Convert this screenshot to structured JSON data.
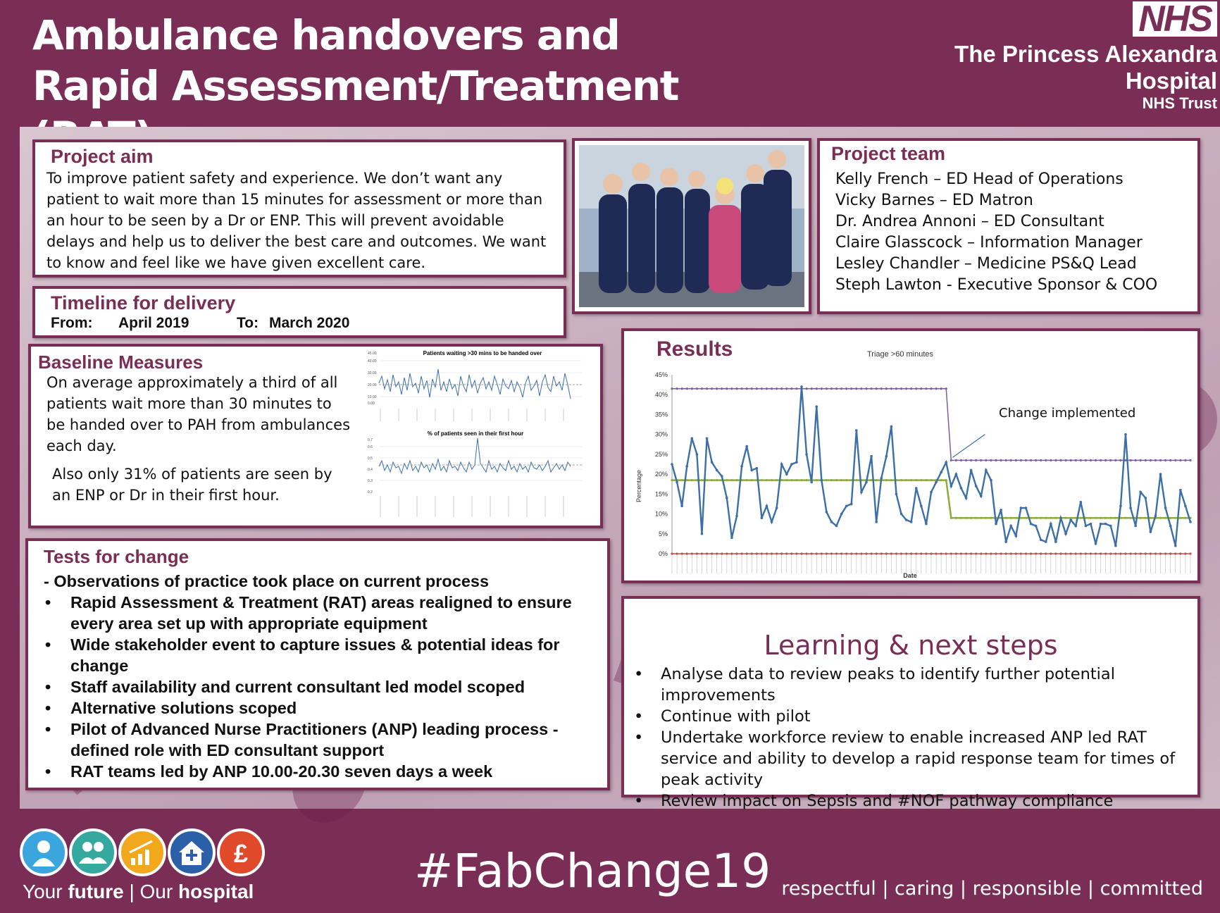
{
  "header": {
    "title": "Ambulance handovers and Rapid Assessment/Treatment (RAT)",
    "nhs_logo": "NHS",
    "org_line1": "The Princess Alexandra",
    "org_line2": "Hospital",
    "org_line3": "NHS Trust"
  },
  "aim": {
    "title": "Project aim",
    "text": "To improve patient safety and experience.  We don’t want any patient to wait more than 15 minutes for assessment or more than an hour to be seen by a Dr or ENP.  This will prevent avoidable delays and help us to deliver the best care and outcomes.  We want to know and feel like we have given excellent care."
  },
  "timeline": {
    "title": "Timeline for delivery",
    "from_label": "From:",
    "from_value": "April 2019",
    "to_label": "To:",
    "to_value": "March 2020"
  },
  "team": {
    "title": "Project team",
    "members": [
      "Kelly French – ED Head of Operations",
      "Vicky Barnes – ED Matron",
      "Dr. Andrea Annoni – ED Consultant",
      "Claire Glasscock – Information Manager",
      "Lesley Chandler – Medicine PS&Q Lead",
      "Steph Lawton - Executive Sponsor & COO"
    ]
  },
  "baseline": {
    "title": "Baseline Measures",
    "text1": "On average approximately a third of all patients wait more than 30 minutes to be handed over to PAH from ambulances each day.",
    "text2": "Also  only 31% of patients are seen by an ENP or Dr in their first hour.",
    "mini_chart1_title": "Patients waiting >30 mins to be handed over",
    "mini_chart2_title": "% of patients seen in their first hour"
  },
  "tests": {
    "title": "Tests for change",
    "intro": "- Observations of  practice took place on current process",
    "items": [
      "Rapid Assessment & Treatment (RAT) areas realigned to ensure every area set up with appropriate equipment",
      "Wide stakeholder event to capture issues & potential ideas for change",
      "Staff availability and current consultant led model scoped",
      "Alternative solutions scoped",
      "Pilot of Advanced Nurse Practitioners (ANP) leading process - defined role with ED consultant support",
      "RAT teams  led by ANP 10.00-20.30 seven days a week"
    ]
  },
  "results": {
    "title": "Results"
  },
  "learning": {
    "title": "Learning & next steps",
    "items": [
      "Analyse data to review peaks to identify further potential improvements",
      "Continue with pilot",
      "Undertake workforce review to enable increased  ANP led RAT service and ability to develop a rapid response team for times of peak activity",
      "Review impact on Sepsis and #NOF pathway compliance"
    ]
  },
  "footer": {
    "tagline_your": "Your ",
    "tagline_future": "future",
    "tagline_sep": " | Our ",
    "tagline_hospital": "hospital",
    "hashtag": "#FabChange19",
    "values": "respectful  |  caring  |  responsible  |  committed",
    "icons": [
      "patient-icon",
      "people-icon",
      "growth-chart-icon",
      "home-plus-icon",
      "pound-icon"
    ],
    "icon_colors": [
      "#3aa6dd",
      "#35a9a0",
      "#f2a81d",
      "#2b5fa8",
      "#e0492a"
    ]
  },
  "chart_data": {
    "type": "line",
    "title": "Triage >60 minutes",
    "xlabel": "Date",
    "ylabel": "Percentage",
    "ylim": [
      0,
      45
    ],
    "yticks": [
      "0%",
      "5%",
      "10%",
      "15%",
      "20%",
      "25%",
      "30%",
      "35%",
      "40%",
      "45%"
    ],
    "annotation": "Change implemented",
    "change_index": 56,
    "series": [
      {
        "values": [
          22.5,
          18,
          12,
          22,
          29,
          25,
          5,
          29,
          23,
          21,
          19.5,
          14,
          4,
          9.5,
          22,
          27,
          21,
          21.5,
          9,
          12,
          8,
          11.5,
          22.5,
          20,
          22.5,
          23,
          42,
          25,
          18,
          37,
          18.5,
          10.5,
          8,
          7,
          10,
          12,
          12.5,
          31,
          15.5,
          18,
          24.5,
          8,
          19,
          24.5,
          32,
          15,
          10,
          8.5,
          8,
          16.5,
          12,
          7.5,
          15.5,
          18,
          20.5,
          23,
          17,
          20,
          16.5,
          14,
          21,
          17,
          14.5,
          21,
          18.5,
          7.5,
          11,
          3,
          7,
          4.5,
          11.5,
          11.5,
          7.5,
          7,
          3.5,
          3,
          7.5,
          3,
          9,
          5,
          8.5,
          7,
          13,
          7,
          7.5,
          2.5,
          7.5,
          7.5,
          7,
          2,
          12,
          30,
          11.5,
          7,
          15.5,
          14,
          5.5,
          9.5,
          20,
          11.5,
          7,
          2,
          16,
          12,
          8
        ]
      }
    ],
    "reference_lines": [
      {
        "role": "upper_control",
        "before": 41.5,
        "after": 23.5
      },
      {
        "role": "mean",
        "before": 18.5,
        "after": 9
      },
      {
        "role": "lower_control",
        "before": 0,
        "after": 0
      }
    ]
  }
}
